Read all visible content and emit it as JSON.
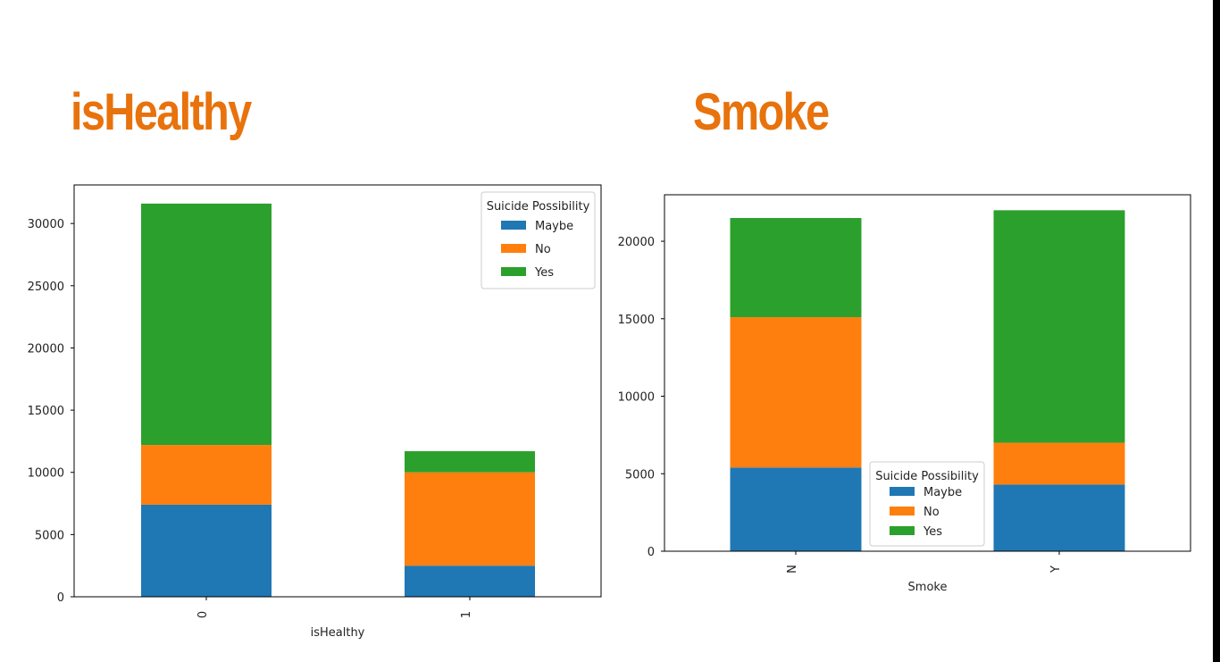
{
  "slide": {
    "accent_color": "#e8720c",
    "left_heading": "isHealthy",
    "right_heading": "Smoke"
  },
  "chart_data": [
    {
      "type": "bar",
      "stacked": true,
      "title": "",
      "xlabel": "isHealthy",
      "ylabel": "",
      "categories": [
        "0",
        "1"
      ],
      "series": [
        {
          "name": "Maybe",
          "color": "#1f77b4",
          "values": [
            7400,
            2500
          ]
        },
        {
          "name": "No",
          "color": "#ff7f0e",
          "values": [
            4800,
            7500
          ]
        },
        {
          "name": "Yes",
          "color": "#2ca02c",
          "values": [
            19400,
            1700
          ]
        }
      ],
      "ylim": [
        0,
        33100
      ],
      "yticks": [
        "0",
        "5000",
        "10000",
        "15000",
        "20000",
        "25000",
        "30000"
      ],
      "legend": {
        "title": "Suicide Possibility",
        "position": "upper right"
      },
      "grid": false
    },
    {
      "type": "bar",
      "stacked": true,
      "title": "",
      "xlabel": "Smoke",
      "ylabel": "",
      "categories": [
        "N",
        "Y"
      ],
      "series": [
        {
          "name": "Maybe",
          "color": "#1f77b4",
          "values": [
            5400,
            4300
          ]
        },
        {
          "name": "No",
          "color": "#ff7f0e",
          "values": [
            9700,
            2700
          ]
        },
        {
          "name": "Yes",
          "color": "#2ca02c",
          "values": [
            6400,
            15000
          ]
        }
      ],
      "ylim": [
        0,
        23000
      ],
      "yticks": [
        "0",
        "5000",
        "10000",
        "15000",
        "20000"
      ],
      "legend": {
        "title": "Suicide Possibility",
        "position": "lower center"
      },
      "grid": false
    }
  ]
}
